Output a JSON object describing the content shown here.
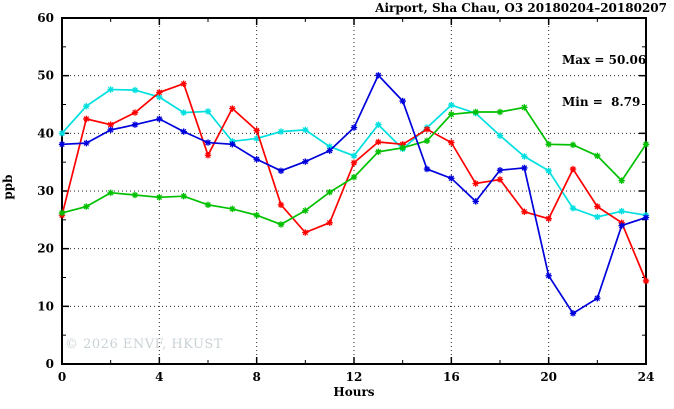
{
  "title": "Airport, Sha Chau, O3 20180204–20180207",
  "stats": {
    "max_label": "Max = 50.06",
    "min_label": "Min =  8.79"
  },
  "watermark": "© 2026 ENVF, HKUST",
  "chart_data": {
    "type": "line",
    "title": "Airport, Sha Chau, O3 20180204–20180207",
    "xlabel": "Hours",
    "ylabel": "ppb",
    "xlim": [
      0,
      24
    ],
    "ylim": [
      0,
      60
    ],
    "x_ticks": [
      0,
      4,
      8,
      12,
      16,
      20,
      24
    ],
    "y_ticks": [
      0,
      10,
      20,
      30,
      40,
      50,
      60
    ],
    "x_minor_step": 2,
    "y_minor_step": 5,
    "grid": true,
    "legend": "none",
    "max": 50.06,
    "min": 8.79,
    "x": [
      0,
      1,
      2,
      3,
      4,
      5,
      6,
      7,
      8,
      9,
      10,
      11,
      12,
      13,
      14,
      15,
      16,
      17,
      18,
      19,
      20,
      21,
      22,
      23,
      24
    ],
    "series": [
      {
        "name": "cyan-line",
        "color": "#00e0e0",
        "values": [
          40.0,
          44.7,
          47.6,
          47.5,
          46.3,
          43.6,
          43.8,
          38.6,
          39.1,
          40.3,
          40.6,
          37.7,
          36.1,
          41.5,
          37.3,
          41.0,
          44.9,
          43.5,
          39.6,
          36.0,
          33.5,
          27.0,
          25.5,
          26.5,
          25.8
        ]
      },
      {
        "name": "red-line",
        "color": "#ff0000",
        "values": [
          25.8,
          42.5,
          41.5,
          43.6,
          47.1,
          48.6,
          36.2,
          44.3,
          40.5,
          27.6,
          22.8,
          24.5,
          34.9,
          38.5,
          38.1,
          40.7,
          38.4,
          31.3,
          32.0,
          26.4,
          25.2,
          33.8,
          27.3,
          24.5,
          14.4
        ]
      },
      {
        "name": "green-line",
        "color": "#00c000",
        "values": [
          26.2,
          27.3,
          29.7,
          29.3,
          28.9,
          29.1,
          27.6,
          26.9,
          25.8,
          24.2,
          26.6,
          29.8,
          32.4,
          36.8,
          37.5,
          38.7,
          43.3,
          43.7,
          43.7,
          44.5,
          38.1,
          38.0,
          36.1,
          31.8,
          38.1
        ]
      },
      {
        "name": "blue-line",
        "color": "#0000dd",
        "values": [
          38.1,
          38.3,
          40.6,
          41.5,
          42.5,
          40.3,
          38.4,
          38.1,
          35.5,
          33.5,
          35.1,
          37.0,
          41.0,
          50.06,
          45.6,
          33.8,
          32.2,
          28.2,
          33.6,
          34.0,
          15.3,
          8.79,
          11.4,
          24.0,
          25.4
        ]
      }
    ]
  }
}
